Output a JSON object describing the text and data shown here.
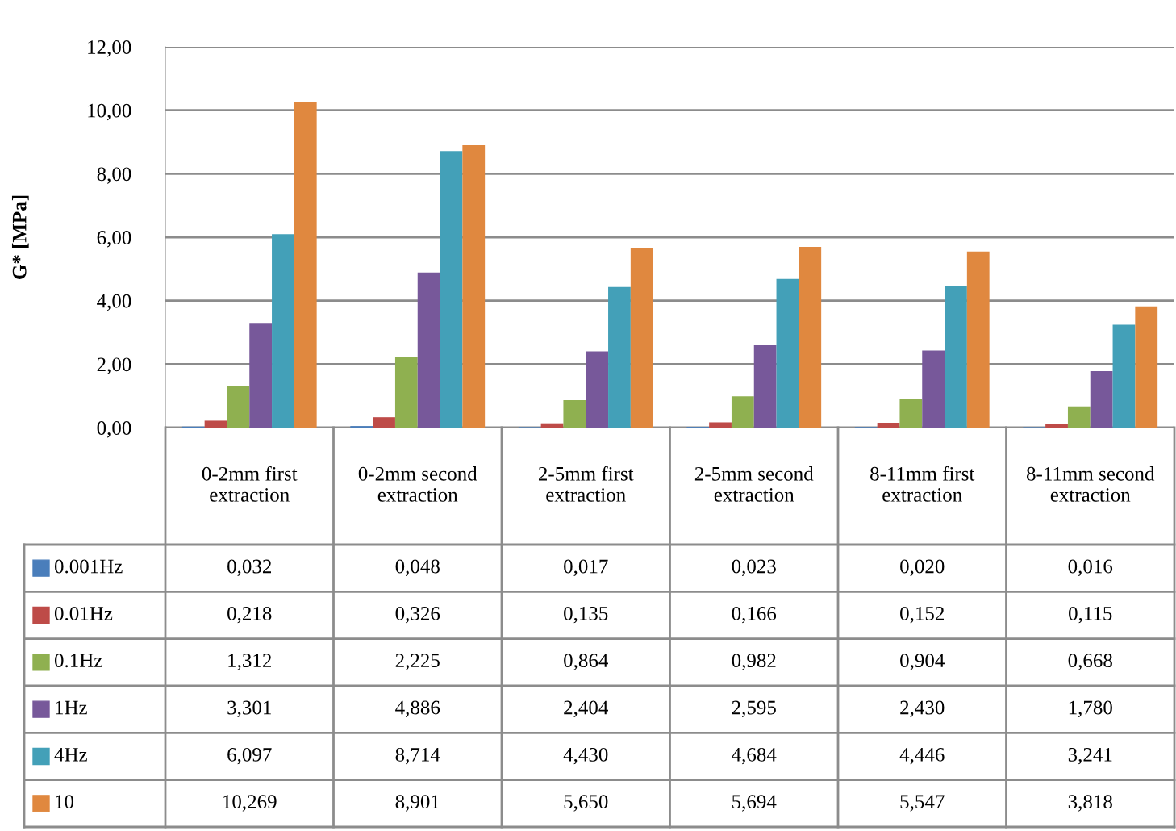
{
  "chart_data": {
    "type": "bar",
    "ylabel": "G* [MPa]",
    "categories": [
      "0-2mm first extraction",
      "0-2mm second extraction",
      "2-5mm first extraction",
      "2-5mm second extraction",
      "8-11mm first extraction",
      "8-11mm second extraction"
    ],
    "series": [
      {
        "name": "0.001Hz",
        "color": "#4a7ebb",
        "values": [
          0.032,
          0.048,
          0.017,
          0.023,
          0.02,
          0.016
        ],
        "value_labels": [
          "0,032",
          "0,048",
          "0,017",
          "0,023",
          "0,020",
          "0,016"
        ]
      },
      {
        "name": "0.01Hz",
        "color": "#be4b48",
        "values": [
          0.218,
          0.326,
          0.135,
          0.166,
          0.152,
          0.115
        ],
        "value_labels": [
          "0,218",
          "0,326",
          "0,135",
          "0,166",
          "0,152",
          "0,115"
        ]
      },
      {
        "name": "0.1Hz",
        "color": "#8fb050",
        "values": [
          1.312,
          2.225,
          0.864,
          0.982,
          0.904,
          0.668
        ],
        "value_labels": [
          "1,312",
          "2,225",
          "0,864",
          "0,982",
          "0,904",
          "0,668"
        ]
      },
      {
        "name": "1Hz",
        "color": "#77589a",
        "values": [
          3.301,
          4.886,
          2.404,
          2.595,
          2.43,
          1.78
        ],
        "value_labels": [
          "3,301",
          "4,886",
          "2,404",
          "2,595",
          "2,430",
          "1,780"
        ]
      },
      {
        "name": "4Hz",
        "color": "#43a0b8",
        "values": [
          6.097,
          8.714,
          4.43,
          4.684,
          4.446,
          3.241
        ],
        "value_labels": [
          "6,097",
          "8,714",
          "4,430",
          "4,684",
          "4,446",
          "3,241"
        ]
      },
      {
        "name": "10",
        "color": "#e0883f",
        "values": [
          10.269,
          8.901,
          5.65,
          5.694,
          5.547,
          3.818
        ],
        "value_labels": [
          "10,269",
          "8,901",
          "5,650",
          "5,694",
          "5,547",
          "3,818"
        ]
      }
    ],
    "ylim": [
      0,
      12
    ],
    "yticks": [
      {
        "value": 0,
        "label": "0,00"
      },
      {
        "value": 2,
        "label": "2,00"
      },
      {
        "value": 4,
        "label": "4,00"
      },
      {
        "value": 6,
        "label": "6,00"
      },
      {
        "value": 8,
        "label": "8,00"
      },
      {
        "value": 10,
        "label": "10,00"
      },
      {
        "value": 12,
        "label": "12,00"
      }
    ],
    "grid": "y",
    "legend": "bottom"
  }
}
